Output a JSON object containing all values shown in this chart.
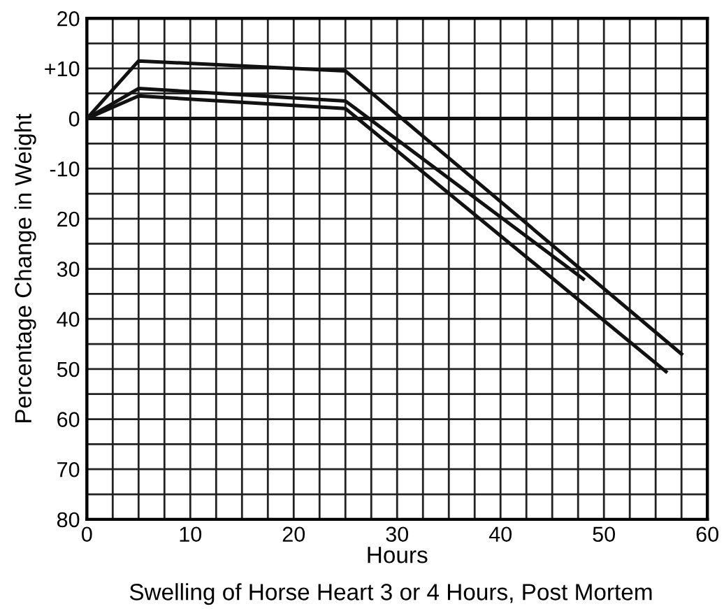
{
  "chart_data": {
    "type": "line",
    "title": "Swelling of Horse Heart 3 or 4 Hours, Post Mortem",
    "xlabel": "Hours",
    "ylabel": "Percentage Change in Weight",
    "series": [
      {
        "color": "#111111",
        "x": [
          0,
          5,
          25,
          57.5
        ],
        "values": [
          0,
          11.5,
          9.5,
          -47
        ]
      },
      {
        "color": "#111111",
        "x": [
          0,
          5,
          25,
          48
        ],
        "values": [
          0,
          6,
          3.5,
          -32
        ]
      },
      {
        "color": "#111111",
        "x": [
          0,
          5,
          25,
          56
        ],
        "values": [
          0,
          4.5,
          2,
          -50.5
        ]
      }
    ],
    "xlim": [
      0,
      60
    ],
    "ylim": [
      -80,
      20
    ],
    "xticks": [
      0,
      {
        "value": 2.5,
        "label": null
      },
      {
        "value": 5,
        "label": null
      },
      {
        "value": 7.5,
        "label": null
      },
      10,
      {
        "value": 12.5,
        "label": null
      },
      {
        "value": 15,
        "label": null
      },
      {
        "value": 17.5,
        "label": null
      },
      20,
      {
        "value": 22.5,
        "label": null
      },
      {
        "value": 25,
        "label": null
      },
      {
        "value": 27.5,
        "label": null
      },
      30,
      {
        "value": 32.5,
        "label": null
      },
      {
        "value": 35,
        "label": null
      },
      {
        "value": 37.5,
        "label": null
      },
      40,
      {
        "value": 42.5,
        "label": null
      },
      {
        "value": 45,
        "label": null
      },
      {
        "value": 47.5,
        "label": null
      },
      50,
      {
        "value": 52.5,
        "label": null
      },
      {
        "value": 55,
        "label": null
      },
      {
        "value": 57.5,
        "label": null
      },
      60
    ],
    "yticks": [
      {
        "value": -80,
        "label": "80"
      },
      {
        "value": -75,
        "label": null
      },
      {
        "value": -70,
        "label": "70"
      },
      {
        "value": -65,
        "label": null
      },
      {
        "value": -60,
        "label": "60"
      },
      {
        "value": -55,
        "label": null
      },
      {
        "value": -50,
        "label": "50"
      },
      {
        "value": -45,
        "label": null
      },
      {
        "value": -40,
        "label": "40"
      },
      {
        "value": -35,
        "label": null
      },
      {
        "value": -30,
        "label": "30"
      },
      {
        "value": -25,
        "label": null
      },
      {
        "value": -20,
        "label": "20"
      },
      {
        "value": -15,
        "label": null
      },
      {
        "value": -10,
        "label": "-10"
      },
      {
        "value": -5,
        "label": null
      },
      0,
      {
        "value": 5,
        "label": null
      },
      {
        "value": 10,
        "label": "+10"
      },
      {
        "value": 15,
        "label": null
      },
      20
    ],
    "ref_lines": [
      {
        "axis": "y",
        "value": 0,
        "color": "#111111"
      }
    ],
    "grid": true,
    "marker": "none",
    "line_style": "solid"
  }
}
